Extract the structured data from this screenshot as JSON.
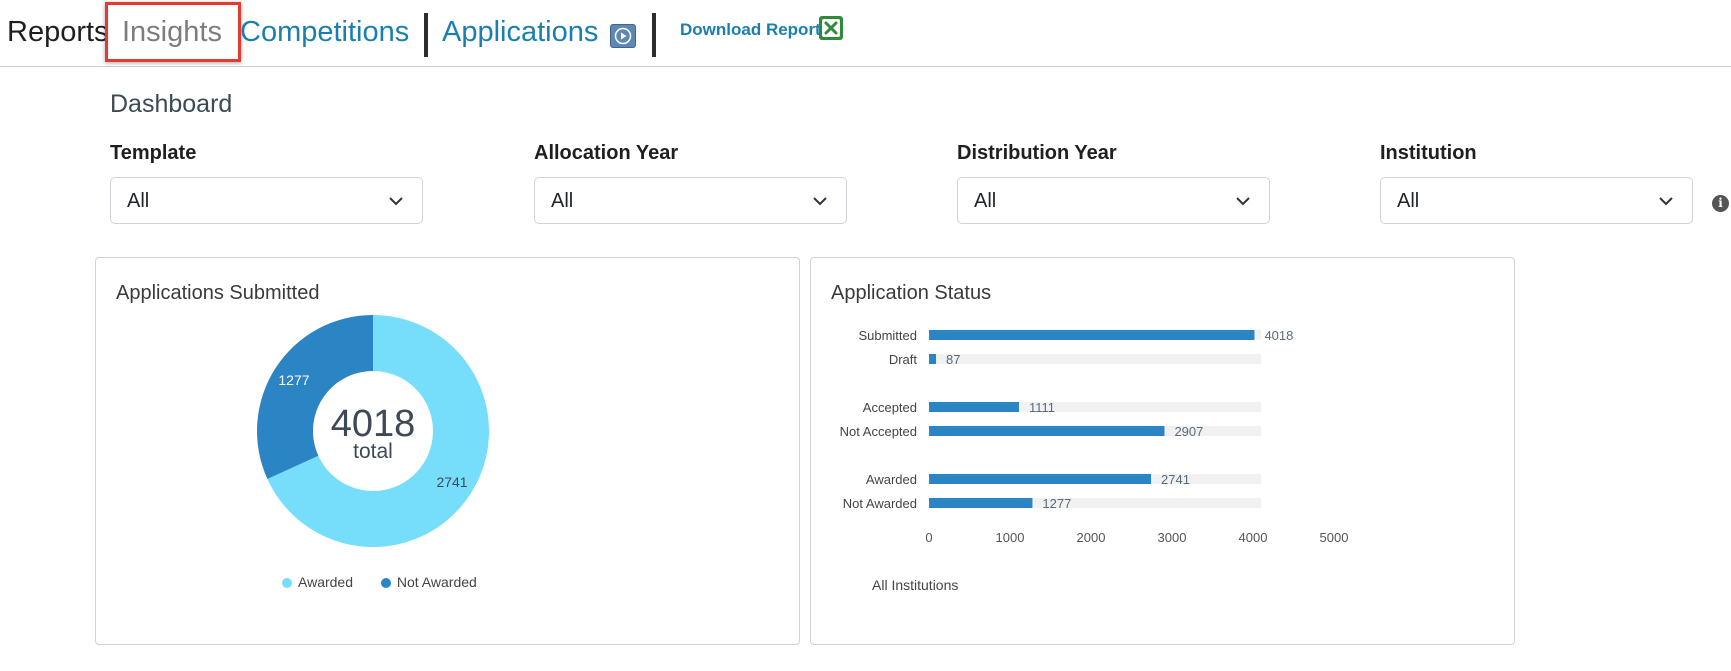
{
  "nav": {
    "reports": "Reports",
    "insights": "Insights",
    "competitions": "Competitions",
    "applications": "Applications",
    "download": "Download Report"
  },
  "icons": {
    "video": "play-video-icon",
    "excel": "excel-icon",
    "info": "info-icon",
    "chevron": "chevron-down-icon"
  },
  "colors": {
    "link": "#1a7fb0",
    "highlight": "#e53935",
    "awarded": "#76ddfb",
    "not_awarded": "#2b84c3",
    "bar": "#2b84c3",
    "bar_track": "#f1f1f1"
  },
  "page": {
    "title": "Dashboard"
  },
  "filters": [
    {
      "label": "Template",
      "value": "All"
    },
    {
      "label": "Allocation Year",
      "value": "All"
    },
    {
      "label": "Distribution Year",
      "value": "All"
    },
    {
      "label": "Institution",
      "value": "All"
    }
  ],
  "charts": {
    "donut": {
      "title": "Applications Submitted",
      "center_value": "4018",
      "center_label": "total"
    },
    "bars": {
      "title": "Application Status",
      "footer": "All Institutions"
    }
  },
  "chart_data": [
    {
      "type": "pie",
      "title": "Applications Submitted",
      "categories": [
        "Awarded",
        "Not Awarded"
      ],
      "values": [
        2741,
        1277
      ],
      "legend": "bottom"
    },
    {
      "type": "bar",
      "orientation": "horizontal",
      "title": "Application Status",
      "categories": [
        "Submitted",
        "Draft",
        "Accepted",
        "Not Accepted",
        "Awarded",
        "Not Awarded"
      ],
      "values": [
        4018,
        87,
        1111,
        2907,
        2741,
        1277
      ],
      "track_max": 4100,
      "xlim": [
        0,
        5000
      ],
      "xticks": [
        0,
        1000,
        2000,
        3000,
        4000,
        5000
      ],
      "xlabel": "All Institutions"
    }
  ]
}
